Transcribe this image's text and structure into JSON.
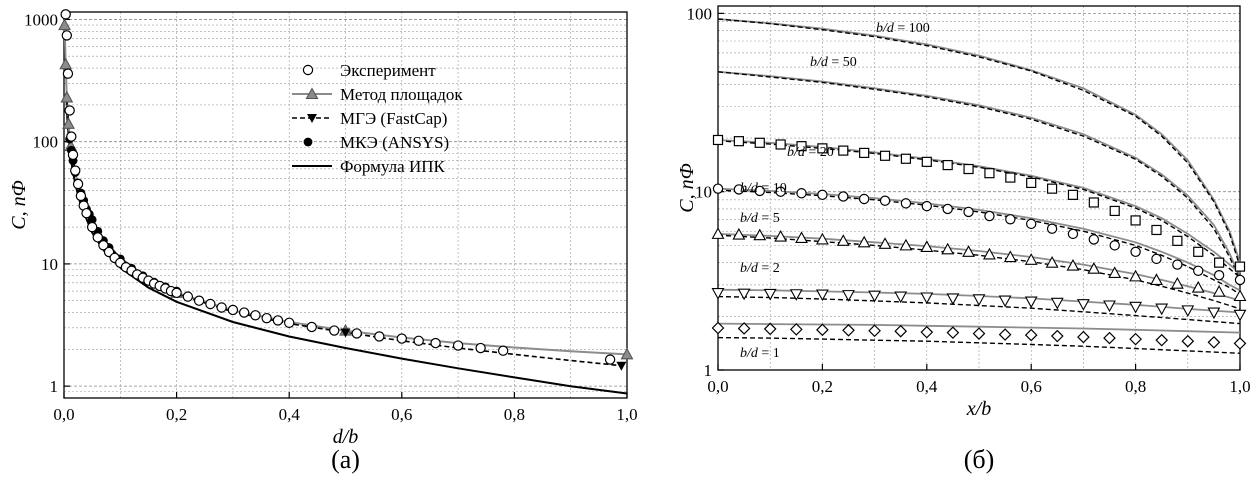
{
  "chart_data": [
    {
      "type": "line",
      "panel_label": "(а)",
      "xlabel": "d/b",
      "ylabel": "C, пФ",
      "xlim": [
        0,
        1
      ],
      "ylim": [
        0.8,
        1150
      ],
      "yscale": "log",
      "grid": true,
      "legend_position": "top-right",
      "x_tick_labels": [
        "0,0",
        "0,2",
        "0,4",
        "0,6",
        "0,8",
        "1,0"
      ],
      "y_tick_labels": [
        "1",
        "10",
        "100",
        "1000"
      ],
      "series": [
        {
          "name": "Эксперимент",
          "style": "open-circle",
          "x": [
            0.003,
            0.005,
            0.007,
            0.01,
            0.013,
            0.016,
            0.02,
            0.025,
            0.03,
            0.035,
            0.04,
            0.05,
            0.06,
            0.07,
            0.08,
            0.09,
            0.1,
            0.11,
            0.12,
            0.13,
            0.14,
            0.15,
            0.16,
            0.17,
            0.18,
            0.19,
            0.2,
            0.22,
            0.24,
            0.26,
            0.28,
            0.3,
            0.32,
            0.34,
            0.36,
            0.38,
            0.4,
            0.44,
            0.48,
            0.52,
            0.56,
            0.6,
            0.63,
            0.66,
            0.7,
            0.74,
            0.78,
            0.97
          ],
          "y": [
            1100,
            740,
            360,
            180,
            110,
            78,
            58,
            45,
            36,
            30,
            26,
            20,
            16.5,
            14.2,
            12.5,
            11.2,
            10.2,
            9.4,
            8.8,
            8.2,
            7.7,
            7.3,
            6.9,
            6.6,
            6.3,
            6.0,
            5.8,
            5.4,
            5.0,
            4.7,
            4.4,
            4.2,
            4.0,
            3.8,
            3.6,
            3.45,
            3.3,
            3.05,
            2.85,
            2.7,
            2.55,
            2.45,
            2.35,
            2.25,
            2.15,
            2.05,
            1.95,
            1.65
          ]
        },
        {
          "name": "Метод площадок",
          "style": "gray-line-triangle",
          "x": [
            0.001,
            0.003,
            0.005,
            0.008,
            0.012,
            0.02,
            0.03,
            0.05,
            0.07,
            0.1,
            0.15,
            0.2,
            0.3,
            0.4,
            0.5,
            0.6,
            0.7,
            0.8,
            0.9,
            1.0
          ],
          "y": [
            900,
            430,
            230,
            140,
            92,
            55,
            38,
            22.5,
            16,
            11.2,
            7.6,
            5.8,
            4.15,
            3.35,
            2.85,
            2.5,
            2.25,
            2.07,
            1.93,
            1.82
          ],
          "markers_at": [
            0.001,
            0.003,
            0.005,
            0.008,
            0.012,
            0.2,
            0.5,
            1.0
          ]
        },
        {
          "name": "МГЭ (FastCap)",
          "style": "dashed-line-down-triangle",
          "x": [
            0.005,
            0.01,
            0.02,
            0.03,
            0.05,
            0.07,
            0.1,
            0.15,
            0.2,
            0.3,
            0.4,
            0.5,
            0.6,
            0.7,
            0.8,
            0.9,
            0.99
          ],
          "y": [
            220,
            110,
            55,
            37,
            22,
            15.8,
            11.1,
            7.5,
            5.7,
            4.05,
            3.25,
            2.75,
            2.35,
            2.05,
            1.82,
            1.62,
            1.47
          ],
          "markers_at": [
            0.5,
            0.99
          ]
        },
        {
          "name": "МКЭ (ANSYS)",
          "style": "filled-circle",
          "x": [
            0.01,
            0.013,
            0.016,
            0.02,
            0.025,
            0.03,
            0.035,
            0.04,
            0.045,
            0.05,
            0.06,
            0.07,
            0.08,
            0.1,
            0.12,
            0.14,
            0.16,
            0.18,
            0.2
          ],
          "y": [
            105,
            85,
            70,
            56,
            46,
            38,
            33,
            28,
            25.5,
            23,
            18.5,
            15.5,
            13.6,
            11,
            9.2,
            8,
            7.1,
            6.5,
            6.0
          ]
        },
        {
          "name": "Формула ИПК",
          "style": "solid-line",
          "x": [
            0.004,
            0.006,
            0.01,
            0.015,
            0.02,
            0.03,
            0.05,
            0.07,
            0.1,
            0.15,
            0.2,
            0.3,
            0.4,
            0.5,
            0.6,
            0.7,
            0.8,
            0.9,
            1.0
          ],
          "y": [
            250,
            150,
            90,
            60,
            45,
            30,
            18,
            13,
            9.3,
            6.4,
            4.9,
            3.35,
            2.55,
            2.05,
            1.68,
            1.4,
            1.18,
            1.0,
            0.87
          ]
        }
      ]
    },
    {
      "type": "line",
      "panel_label": "(б)",
      "xlabel": "x/b",
      "ylabel": "C, пФ",
      "xlim": [
        0,
        1
      ],
      "ylim": [
        1,
        110
      ],
      "yscale": "log",
      "grid": true,
      "x_tick_labels": [
        "0,0",
        "0,2",
        "0,4",
        "0,6",
        "0,8",
        "1,0"
      ],
      "y_tick_labels": [
        "1",
        "10",
        "100"
      ],
      "series": [
        {
          "name": "b/d = 100",
          "label": "b/d = 100",
          "x": [
            0,
            0.1,
            0.2,
            0.3,
            0.4,
            0.5,
            0.6,
            0.7,
            0.8,
            0.85,
            0.9,
            0.95,
            0.98,
            1.0
          ],
          "solid": [
            93,
            88,
            82,
            75,
            67,
            58,
            48,
            38,
            27,
            21,
            15,
            9,
            6,
            4
          ],
          "dashed": [
            93,
            87.5,
            81,
            74,
            66,
            57,
            47.5,
            37,
            26.5,
            20.5,
            14.5,
            8.8,
            5.8,
            3.8
          ]
        },
        {
          "name": "b/d = 50",
          "label": "b/d = 50",
          "x": [
            0,
            0.1,
            0.2,
            0.3,
            0.4,
            0.5,
            0.6,
            0.7,
            0.8,
            0.85,
            0.9,
            0.95,
            0.98,
            1.0
          ],
          "solid": [
            47,
            44.5,
            41.5,
            38,
            34.5,
            30.5,
            26,
            21,
            15.5,
            12.5,
            9.5,
            6.5,
            4.5,
            3.3
          ],
          "dashed": [
            47,
            44,
            41,
            37.5,
            34,
            30,
            25.5,
            20.5,
            15.2,
            12.2,
            9.2,
            6.2,
            4.3,
            3.2
          ]
        },
        {
          "name": "b/d = 20",
          "label": "b/d = 20",
          "x": [
            0,
            0.1,
            0.2,
            0.3,
            0.4,
            0.5,
            0.6,
            0.7,
            0.8,
            0.85,
            0.9,
            0.95,
            0.98,
            1.0
          ],
          "solid": [
            19.5,
            18.8,
            17.8,
            16.6,
            15.3,
            13.9,
            12.3,
            10.5,
            8.3,
            7.1,
            5.8,
            4.6,
            3.9,
            3.5
          ],
          "dashed": [
            19.3,
            18.5,
            17.5,
            16.4,
            15.1,
            13.7,
            12.1,
            10.3,
            8.1,
            6.9,
            5.6,
            4.4,
            3.7,
            3.3
          ],
          "markers": "square",
          "marker_x": [
            0,
            0.04,
            0.08,
            0.12,
            0.16,
            0.2,
            0.24,
            0.28,
            0.32,
            0.36,
            0.4,
            0.44,
            0.48,
            0.52,
            0.56,
            0.6,
            0.64,
            0.68,
            0.72,
            0.76,
            0.8,
            0.84,
            0.88,
            0.92,
            0.96,
            1.0
          ],
          "marker_y": [
            19.5,
            19.2,
            18.8,
            18.4,
            18.0,
            17.5,
            17.0,
            16.5,
            15.9,
            15.3,
            14.7,
            14.1,
            13.4,
            12.7,
            12.0,
            11.2,
            10.4,
            9.6,
            8.7,
            7.8,
            6.9,
            6.1,
            5.3,
            4.6,
            4.0,
            3.8
          ]
        },
        {
          "name": "b/d = 10",
          "label": "b/d = 10",
          "x": [
            0,
            0.1,
            0.2,
            0.3,
            0.4,
            0.5,
            0.6,
            0.7,
            0.8,
            0.85,
            0.9,
            0.95,
            0.98,
            1.0
          ],
          "solid": [
            10.4,
            10.1,
            9.7,
            9.2,
            8.6,
            7.9,
            7.1,
            6.2,
            5.2,
            4.6,
            4.0,
            3.4,
            3.0,
            2.8
          ],
          "dashed": [
            10.2,
            9.9,
            9.5,
            9.0,
            8.4,
            7.7,
            6.9,
            6.0,
            5.0,
            4.4,
            3.8,
            3.2,
            2.9,
            2.65
          ],
          "markers": "circle",
          "marker_x": [
            0,
            0.04,
            0.08,
            0.12,
            0.16,
            0.2,
            0.24,
            0.28,
            0.32,
            0.36,
            0.4,
            0.44,
            0.48,
            0.52,
            0.56,
            0.6,
            0.64,
            0.68,
            0.72,
            0.76,
            0.8,
            0.84,
            0.88,
            0.92,
            0.96,
            1.0
          ],
          "marker_y": [
            10.4,
            10.3,
            10.1,
            10.0,
            9.8,
            9.6,
            9.4,
            9.1,
            8.9,
            8.6,
            8.3,
            8.0,
            7.7,
            7.3,
            7.0,
            6.6,
            6.2,
            5.8,
            5.4,
            5.0,
            4.6,
            4.2,
            3.9,
            3.6,
            3.4,
            3.2
          ]
        },
        {
          "name": "b/d = 5",
          "label": "b/d = 5",
          "x": [
            0,
            0.1,
            0.2,
            0.3,
            0.4,
            0.5,
            0.6,
            0.7,
            0.8,
            0.85,
            0.9,
            0.95,
            0.98,
            1.0
          ],
          "solid": [
            5.8,
            5.65,
            5.45,
            5.2,
            4.95,
            4.65,
            4.3,
            3.9,
            3.45,
            3.2,
            2.95,
            2.7,
            2.55,
            2.45
          ],
          "dashed": [
            5.7,
            5.5,
            5.25,
            5.0,
            4.7,
            4.4,
            4.05,
            3.65,
            3.2,
            2.95,
            2.7,
            2.45,
            2.3,
            2.2
          ],
          "markers": "triangle",
          "marker_x": [
            0,
            0.04,
            0.08,
            0.12,
            0.16,
            0.2,
            0.24,
            0.28,
            0.32,
            0.36,
            0.4,
            0.44,
            0.48,
            0.52,
            0.56,
            0.6,
            0.64,
            0.68,
            0.72,
            0.76,
            0.8,
            0.84,
            0.88,
            0.92,
            0.96,
            1.0
          ],
          "marker_y": [
            5.8,
            5.75,
            5.7,
            5.6,
            5.5,
            5.4,
            5.3,
            5.2,
            5.1,
            5.0,
            4.9,
            4.75,
            4.6,
            4.45,
            4.3,
            4.15,
            4.0,
            3.85,
            3.7,
            3.5,
            3.35,
            3.2,
            3.05,
            2.9,
            2.75,
            2.6
          ]
        },
        {
          "name": "b/d = 2",
          "label": "b/d = 2",
          "x": [
            0,
            0.1,
            0.2,
            0.3,
            0.4,
            0.5,
            0.6,
            0.7,
            0.8,
            0.9,
            1.0
          ],
          "solid": [
            2.82,
            2.8,
            2.76,
            2.72,
            2.67,
            2.6,
            2.52,
            2.42,
            2.32,
            2.2,
            2.1
          ],
          "dashed": [
            2.58,
            2.55,
            2.5,
            2.44,
            2.38,
            2.3,
            2.22,
            2.12,
            2.02,
            1.92,
            1.82
          ],
          "markers": "down-triangle",
          "marker_x": [
            0,
            0.05,
            0.1,
            0.15,
            0.2,
            0.25,
            0.3,
            0.35,
            0.4,
            0.45,
            0.5,
            0.55,
            0.6,
            0.65,
            0.7,
            0.75,
            0.8,
            0.85,
            0.9,
            0.95,
            1.0
          ],
          "marker_y": [
            2.7,
            2.68,
            2.67,
            2.66,
            2.65,
            2.63,
            2.61,
            2.58,
            2.55,
            2.52,
            2.49,
            2.45,
            2.42,
            2.38,
            2.34,
            2.3,
            2.26,
            2.21,
            2.16,
            2.1,
            2.04
          ]
        },
        {
          "name": "b/d = 1",
          "label": "b/d = 1",
          "x": [
            0,
            0.1,
            0.2,
            0.3,
            0.4,
            0.5,
            0.6,
            0.7,
            0.8,
            0.9,
            1.0
          ],
          "solid": [
            1.82,
            1.81,
            1.8,
            1.79,
            1.77,
            1.75,
            1.73,
            1.71,
            1.68,
            1.65,
            1.62
          ],
          "dashed": [
            1.52,
            1.51,
            1.49,
            1.47,
            1.45,
            1.42,
            1.39,
            1.36,
            1.32,
            1.28,
            1.24
          ],
          "markers": "diamond",
          "marker_x": [
            0,
            0.05,
            0.1,
            0.15,
            0.2,
            0.25,
            0.3,
            0.35,
            0.4,
            0.45,
            0.5,
            0.55,
            0.6,
            0.65,
            0.7,
            0.75,
            0.8,
            0.85,
            0.9,
            0.95,
            1.0
          ],
          "marker_y": [
            1.72,
            1.71,
            1.7,
            1.69,
            1.68,
            1.67,
            1.66,
            1.65,
            1.63,
            1.62,
            1.6,
            1.58,
            1.57,
            1.55,
            1.53,
            1.51,
            1.49,
            1.47,
            1.45,
            1.43,
            1.41
          ]
        }
      ]
    }
  ]
}
